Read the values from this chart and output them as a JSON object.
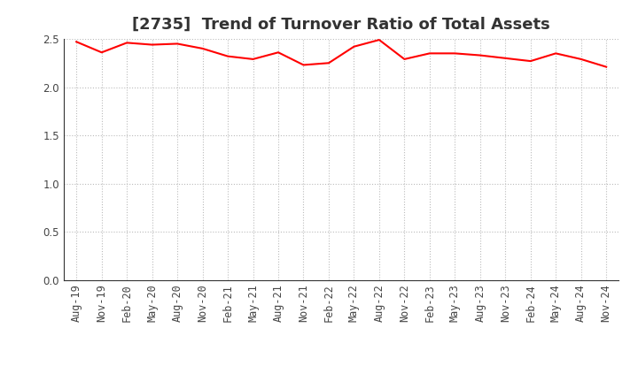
{
  "title": "[2735]  Trend of Turnover Ratio of Total Assets",
  "line_color": "#FF0000",
  "line_width": 1.5,
  "background_color": "#FFFFFF",
  "grid_color": "#BBBBBB",
  "ylim": [
    0.0,
    2.5
  ],
  "yticks": [
    0.0,
    0.5,
    1.0,
    1.5,
    2.0,
    2.5
  ],
  "x_labels": [
    "Aug-19",
    "Nov-19",
    "Feb-20",
    "May-20",
    "Aug-20",
    "Nov-20",
    "Feb-21",
    "May-21",
    "Aug-21",
    "Nov-21",
    "Feb-22",
    "May-22",
    "Aug-22",
    "Nov-22",
    "Feb-23",
    "May-23",
    "Aug-23",
    "Nov-23",
    "Feb-24",
    "May-24",
    "Aug-24",
    "Nov-24"
  ],
  "values": [
    2.47,
    2.36,
    2.46,
    2.44,
    2.45,
    2.4,
    2.32,
    2.29,
    2.36,
    2.23,
    2.25,
    2.42,
    2.49,
    2.29,
    2.35,
    2.35,
    2.33,
    2.3,
    2.27,
    2.35,
    2.29,
    2.21
  ],
  "title_fontsize": 13,
  "tick_fontsize": 8.5,
  "tick_color": "#444444",
  "title_color": "#333333"
}
